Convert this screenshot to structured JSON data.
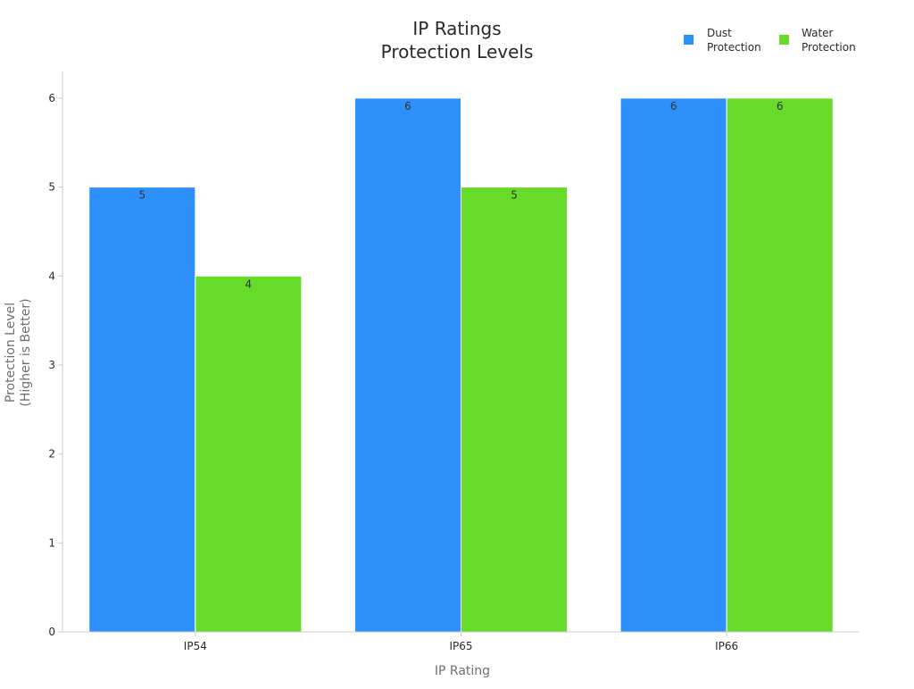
{
  "chart_data": {
    "type": "bar",
    "title": [
      "IP Ratings",
      "Protection Levels"
    ],
    "xlabel": "IP Rating",
    "ylabel": [
      "Protection Level",
      "(Higher is Better)"
    ],
    "categories": [
      "IP54",
      "IP65",
      "IP66"
    ],
    "ylim": [
      0,
      6.3
    ],
    "yticks": [
      0,
      1,
      2,
      3,
      4,
      5,
      6
    ],
    "grid": false,
    "legend_position": "top-right",
    "series": [
      {
        "name": [
          "Dust",
          "Protection"
        ],
        "values": [
          5,
          6,
          6
        ],
        "color": "#2e90fa"
      },
      {
        "name": [
          "Water",
          "Protection"
        ],
        "values": [
          4,
          5,
          6
        ],
        "color": "#66db29"
      }
    ]
  }
}
